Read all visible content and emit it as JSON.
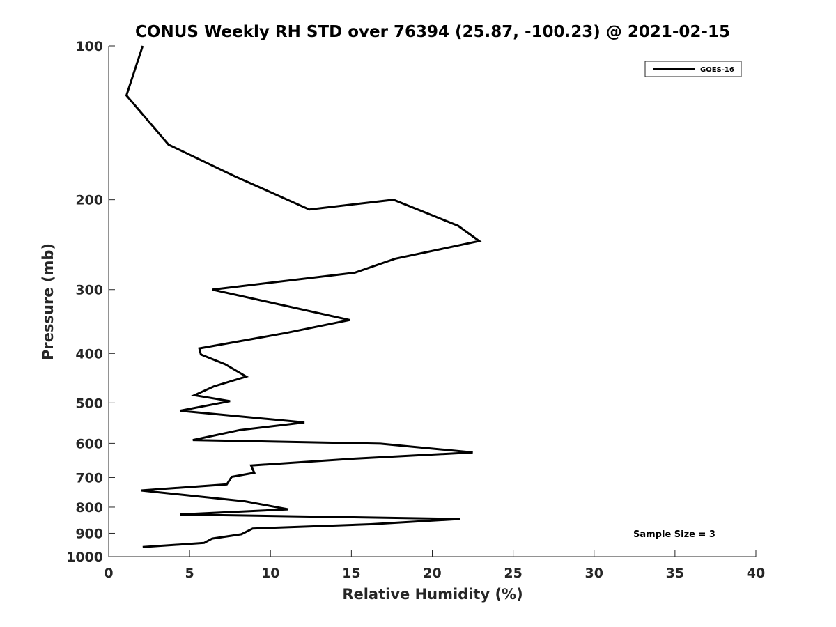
{
  "chart_data": {
    "type": "line",
    "title": "CONUS Weekly RH STD over 76394 (25.87, -100.23) @ 2021-02-15",
    "xlabel": "Relative Humidity (%)",
    "ylabel": "Pressure (mb)",
    "xlim": [
      0,
      40
    ],
    "ylim": [
      100,
      1000
    ],
    "y_scale": "log",
    "y_reversed": true,
    "x_ticks": [
      0,
      5,
      10,
      15,
      20,
      25,
      30,
      35,
      40
    ],
    "x_tick_labels": [
      "0",
      "5",
      "10",
      "15",
      "20",
      "25",
      "30",
      "35",
      "40"
    ],
    "y_ticks": [
      100,
      200,
      300,
      400,
      500,
      600,
      700,
      800,
      900,
      1000
    ],
    "y_tick_labels": [
      "100",
      "200",
      "300",
      "400",
      "500",
      "600",
      "700",
      "800",
      "900",
      "1000"
    ],
    "grid": false,
    "legend_position": "top-right",
    "series": [
      {
        "name": "GOES-16",
        "color": "#000000",
        "points": [
          [
            2.1,
            100
          ],
          [
            1.1,
            125
          ],
          [
            3.7,
            156
          ],
          [
            7.8,
            180
          ],
          [
            12.4,
            209
          ],
          [
            17.6,
            200
          ],
          [
            21.6,
            225
          ],
          [
            22.9,
            241
          ],
          [
            17.7,
            261
          ],
          [
            15.2,
            278
          ],
          [
            6.4,
            300
          ],
          [
            14.9,
            344
          ],
          [
            10.9,
            365
          ],
          [
            5.6,
            391
          ],
          [
            5.7,
            402
          ],
          [
            7.2,
            420
          ],
          [
            8.5,
            444
          ],
          [
            6.5,
            464
          ],
          [
            5.3,
            483
          ],
          [
            7.5,
            496
          ],
          [
            4.4,
            518
          ],
          [
            12.1,
            546
          ],
          [
            8.1,
            565
          ],
          [
            5.2,
            591
          ],
          [
            16.8,
            601
          ],
          [
            22.5,
            625
          ],
          [
            15.2,
            643
          ],
          [
            8.8,
            663
          ],
          [
            9.0,
            685
          ],
          [
            7.6,
            698
          ],
          [
            7.3,
            722
          ],
          [
            2.0,
            742
          ],
          [
            8.4,
            779
          ],
          [
            11.1,
            808
          ],
          [
            4.4,
            827
          ],
          [
            21.7,
            844
          ],
          [
            16.2,
            864
          ],
          [
            8.9,
            881
          ],
          [
            8.2,
            904
          ],
          [
            6.4,
            922
          ],
          [
            5.9,
            940
          ],
          [
            2.1,
            958
          ]
        ]
      }
    ],
    "annotations": [
      "Sample Size = 3"
    ]
  }
}
